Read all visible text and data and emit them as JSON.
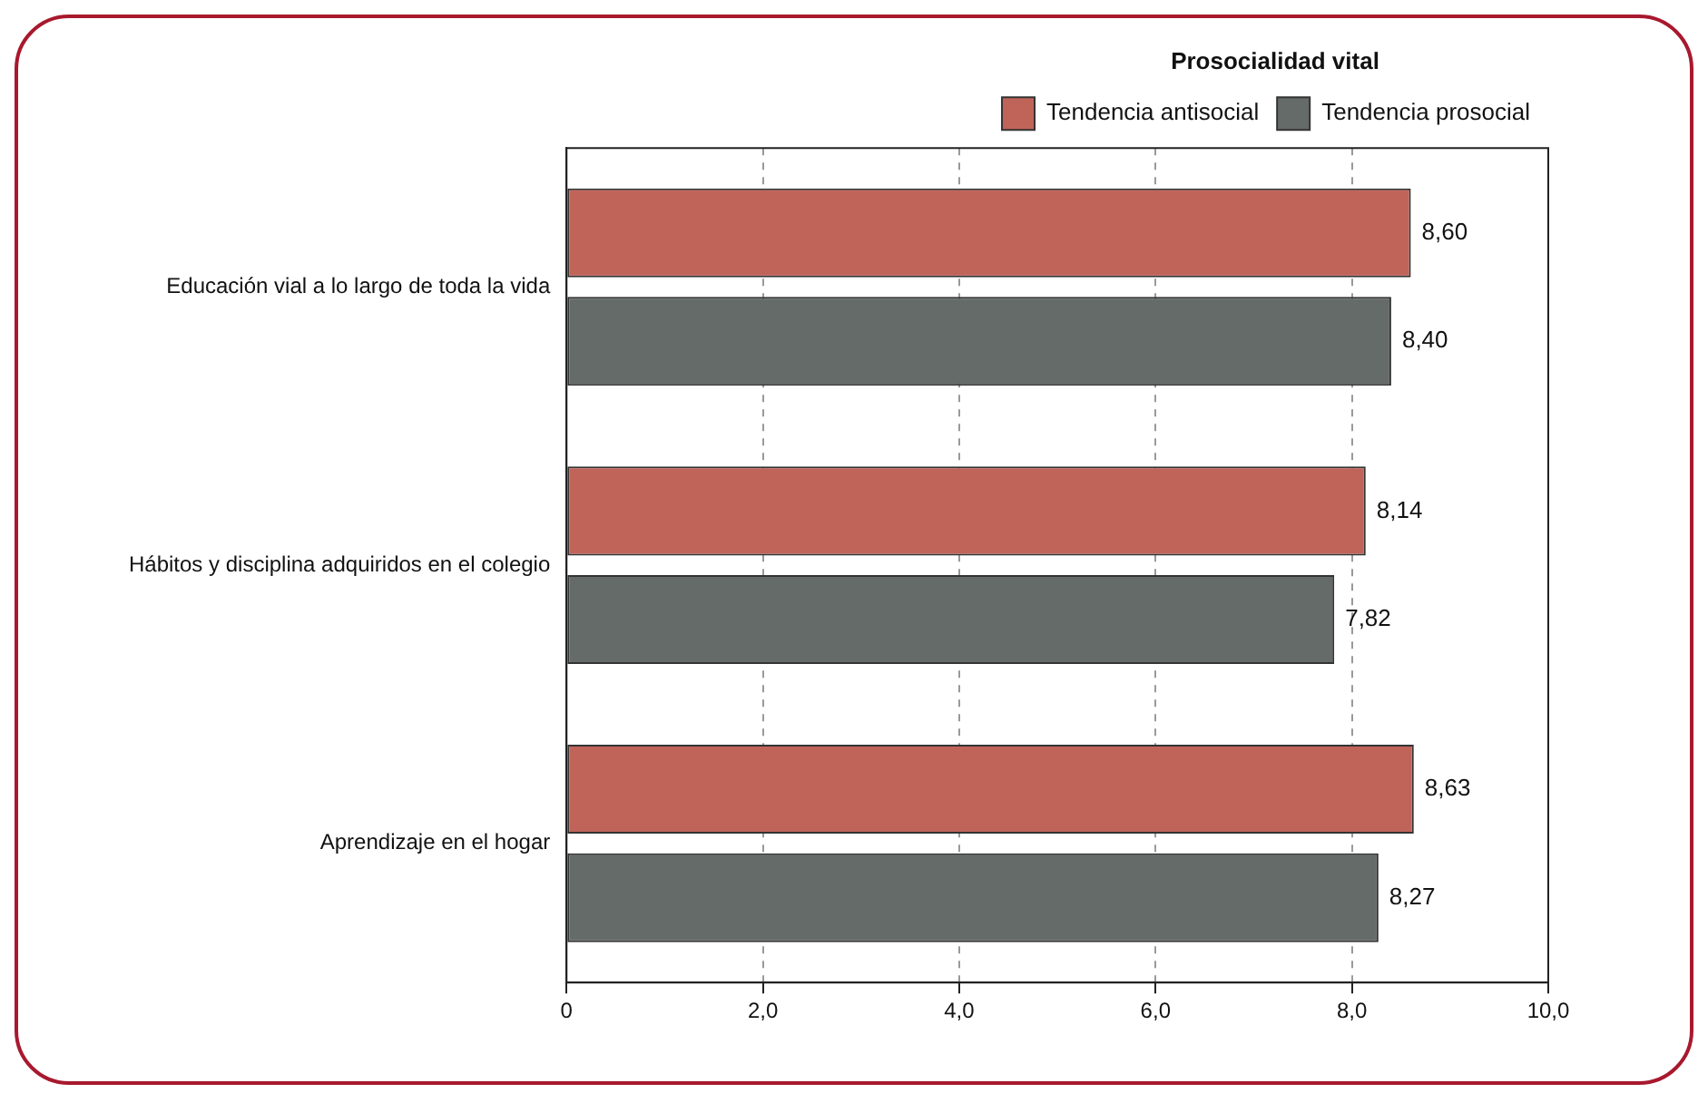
{
  "chart_data": {
    "type": "bar",
    "orientation": "horizontal",
    "legend_title": "Prosocialidad vital",
    "categories": [
      "Educación vial a lo largo de toda la vida",
      "Hábitos y disciplina adquiridos en el colegio",
      "Aprendizaje en el hogar"
    ],
    "series": [
      {
        "name": "Tendencia antisocial",
        "color": "#c0645a",
        "values": [
          8.6,
          8.14,
          8.63
        ],
        "value_labels": [
          "8,60",
          "8,14",
          "8,63"
        ]
      },
      {
        "name": "Tendencia prosocial",
        "color": "#656b69",
        "values": [
          8.4,
          7.82,
          8.27
        ],
        "value_labels": [
          "8,40",
          "7,82",
          "8,27"
        ]
      }
    ],
    "xlim": [
      0,
      10
    ],
    "xticks": [
      0,
      {
        "value": 2,
        "label": "2,0"
      },
      {
        "value": 4,
        "label": "4,0"
      },
      {
        "value": 6,
        "label": "6,0"
      },
      {
        "value": 8,
        "label": "8,0"
      },
      {
        "value": 10,
        "label": "10,0"
      }
    ],
    "grid": "x",
    "line_style": "dashed",
    "legend": "top right"
  }
}
